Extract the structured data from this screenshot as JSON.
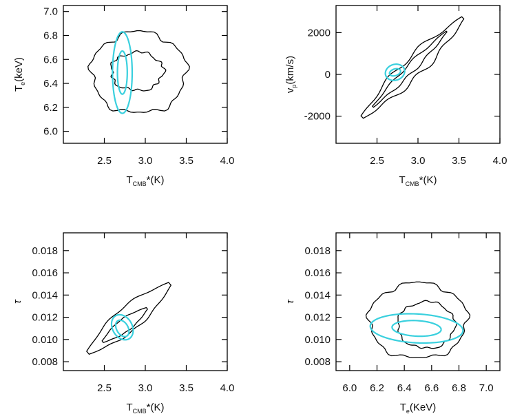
{
  "chart_data": [
    {
      "type": "contour",
      "xlabel": {
        "main": "T",
        "sub": "CMB",
        "tail": "*(K)"
      },
      "ylabel": {
        "main": "T",
        "sub": "e",
        "tail": "(keV)"
      },
      "xlim": [
        2.0,
        4.0
      ],
      "ylim": [
        5.9,
        7.05
      ],
      "xticks": [
        2.5,
        3.0,
        3.5,
        4.0
      ],
      "xtick_labels": [
        "2.5",
        "3.0",
        "3.5",
        "4.0"
      ],
      "yticks": [
        6.0,
        6.2,
        6.4,
        6.6,
        6.8,
        7.0
      ],
      "ytick_labels": [
        "6.0",
        "6.2",
        "6.4",
        "6.6",
        "6.8",
        "7.0"
      ],
      "series": [
        {
          "color": "#000000",
          "shape": "blob",
          "cx": 2.92,
          "cy": 6.49,
          "rx": 0.58,
          "ry": 0.34,
          "jitter": 0.07
        },
        {
          "color": "#000000",
          "shape": "blob",
          "cx": 2.9,
          "cy": 6.5,
          "rx": 0.32,
          "ry": 0.16,
          "jitter": 0.09
        },
        {
          "color": "#3ad0de",
          "shape": "ellipse",
          "cx": 2.72,
          "cy": 6.49,
          "rx": 0.12,
          "ry": 0.34,
          "angle": 0
        },
        {
          "color": "#3ad0de",
          "shape": "ellipse",
          "cx": 2.72,
          "cy": 6.49,
          "rx": 0.06,
          "ry": 0.18,
          "angle": 0
        }
      ]
    },
    {
      "type": "contour",
      "xlabel": {
        "main": "T",
        "sub": "CMB",
        "tail": "*(K)"
      },
      "ylabel": {
        "main": "v",
        "sub": "p",
        "tail": "(km/s)"
      },
      "xlim": [
        2.0,
        4.0
      ],
      "ylim": [
        -3300,
        3300
      ],
      "xticks": [
        2.5,
        3.0,
        3.5,
        4.0
      ],
      "xtick_labels": [
        "2.5",
        "3.0",
        "3.5",
        "4.0"
      ],
      "yticks": [
        -2000,
        0,
        2000
      ],
      "ytick_labels": [
        "-2000",
        "0",
        "2000"
      ],
      "series": [
        {
          "color": "#000000",
          "shape": "band",
          "x0": 2.32,
          "y0": -2050,
          "x1": 3.55,
          "y1": 2700,
          "w": 0.12,
          "jitter": 0.25
        },
        {
          "color": "#000000",
          "shape": "band",
          "x0": 2.45,
          "y0": -1550,
          "x1": 3.35,
          "y1": 2050,
          "w": 0.05,
          "jitter": 0.3
        },
        {
          "color": "#3ad0de",
          "shape": "ellipse",
          "cx": 2.72,
          "cy": 100,
          "rx": 0.12,
          "ry": 380,
          "angle": -18
        },
        {
          "color": "#3ad0de",
          "shape": "ellipse",
          "cx": 2.72,
          "cy": 100,
          "rx": 0.07,
          "ry": 160,
          "angle": -18
        }
      ]
    },
    {
      "type": "contour",
      "xlabel": {
        "main": "T",
        "sub": "CMB",
        "tail": "*(K)"
      },
      "ylabel": {
        "main": "τ",
        "sub": "",
        "tail": ""
      },
      "xlim": [
        2.0,
        4.0
      ],
      "ylim": [
        0.0072,
        0.0196
      ],
      "xticks": [
        2.5,
        3.0,
        3.5,
        4.0
      ],
      "xtick_labels": [
        "2.5",
        "3.0",
        "3.5",
        "4.0"
      ],
      "yticks": [
        0.008,
        0.01,
        0.012,
        0.014,
        0.016,
        0.018
      ],
      "ytick_labels": [
        "0.008",
        "0.010",
        "0.012",
        "0.014",
        "0.016",
        "0.018"
      ],
      "series": [
        {
          "color": "#000000",
          "shape": "band",
          "x0": 2.3,
          "y0": 0.0088,
          "x1": 3.3,
          "y1": 0.015,
          "w": 0.15,
          "jitter": 0.08
        },
        {
          "color": "#000000",
          "shape": "band",
          "x0": 2.48,
          "y0": 0.0098,
          "x1": 3.02,
          "y1": 0.0128,
          "w": 0.08,
          "jitter": 0.06
        },
        {
          "color": "#3ad0de",
          "shape": "ellipse",
          "cx": 2.72,
          "cy": 0.0111,
          "rx": 0.12,
          "ry": 0.0012,
          "angle": -30
        },
        {
          "color": "#3ad0de",
          "shape": "ellipse",
          "cx": 2.72,
          "cy": 0.011,
          "rx": 0.07,
          "ry": 0.0008,
          "angle": -30
        }
      ]
    },
    {
      "type": "contour",
      "xlabel": {
        "main": "T",
        "sub": "e",
        "tail": "(KeV)"
      },
      "ylabel": {
        "main": "τ",
        "sub": "",
        "tail": ""
      },
      "xlim": [
        5.9,
        7.1
      ],
      "ylim": [
        0.0072,
        0.0196
      ],
      "xticks": [
        6.0,
        6.2,
        6.4,
        6.6,
        6.8,
        7.0
      ],
      "xtick_labels": [
        "6.0",
        "6.2",
        "6.4",
        "6.6",
        "6.8",
        "7.0"
      ],
      "yticks": [
        0.008,
        0.01,
        0.012,
        0.014,
        0.016,
        0.018
      ],
      "ytick_labels": [
        "0.008",
        "0.010",
        "0.012",
        "0.014",
        "0.016",
        "0.018"
      ],
      "series": [
        {
          "color": "#000000",
          "shape": "blob",
          "cx": 6.5,
          "cy": 0.0117,
          "rx": 0.36,
          "ry": 0.0034,
          "jitter": 0.06
        },
        {
          "color": "#000000",
          "shape": "blob",
          "cx": 6.56,
          "cy": 0.0113,
          "rx": 0.21,
          "ry": 0.0021,
          "jitter": 0.06
        },
        {
          "color": "#3ad0de",
          "shape": "ellipse",
          "cx": 6.49,
          "cy": 0.011,
          "rx": 0.34,
          "ry": 0.0013,
          "angle": 3
        },
        {
          "color": "#3ad0de",
          "shape": "ellipse",
          "cx": 6.49,
          "cy": 0.011,
          "rx": 0.18,
          "ry": 0.0007,
          "angle": 3
        }
      ]
    }
  ]
}
